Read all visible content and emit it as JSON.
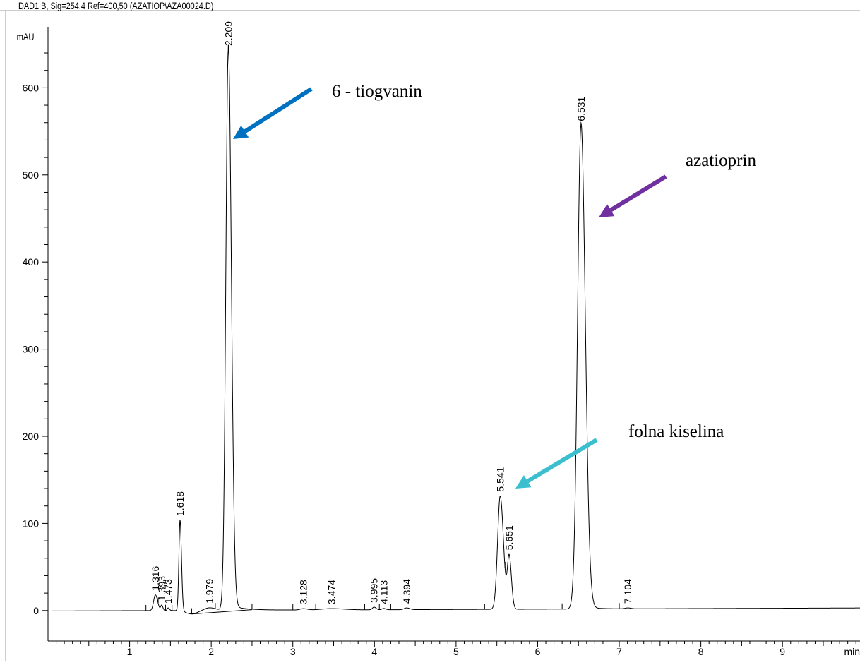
{
  "chart_data": {
    "type": "line",
    "title": "DAD1 B, Sig=254,4 Ref=400,50 (AZATIOP\\AZA00024.D)",
    "ylabel": "mAU",
    "xlabel": "min",
    "xlim": [
      0.0,
      9.95
    ],
    "ylim": [
      -35,
      670
    ],
    "x_ticks": [
      1,
      2,
      3,
      4,
      5,
      6,
      7,
      8,
      9
    ],
    "y_ticks": [
      0,
      100,
      200,
      300,
      400,
      500,
      600
    ],
    "peaks": [
      {
        "rt": 1.316,
        "height": 18,
        "width": 0.022,
        "label": "1.316"
      },
      {
        "rt": 1.393,
        "height": 6,
        "width": 0.012,
        "label": "1.393"
      },
      {
        "rt": 1.473,
        "height": 3,
        "width": 0.012,
        "label": "1.473"
      },
      {
        "rt": 1.618,
        "height": 104,
        "width": 0.014,
        "label": "1.618"
      },
      {
        "rt": 1.979,
        "height": 3,
        "width": 0.06,
        "label": "1.979"
      },
      {
        "rt": 2.209,
        "height": 643,
        "width": 0.03,
        "label": "2.209"
      },
      {
        "rt": 3.128,
        "height": 1.5,
        "width": 0.04,
        "label": "3.128"
      },
      {
        "rt": 3.474,
        "height": 1.5,
        "width": 0.12,
        "label": "3.474"
      },
      {
        "rt": 3.995,
        "height": 3,
        "width": 0.02,
        "label": "3.995"
      },
      {
        "rt": 4.113,
        "height": 1.5,
        "width": 0.02,
        "label": "4.113"
      },
      {
        "rt": 4.394,
        "height": 2,
        "width": 0.03,
        "label": "4.394"
      },
      {
        "rt": 5.541,
        "height": 130,
        "width": 0.032,
        "label": "5.541"
      },
      {
        "rt": 5.651,
        "height": 60,
        "width": 0.022,
        "label": "5.651"
      },
      {
        "rt": 6.531,
        "height": 555,
        "width": 0.042,
        "label": "6.531"
      },
      {
        "rt": 7.104,
        "height": 1,
        "width": 0.03,
        "label": "7.104"
      }
    ],
    "annotations": [
      {
        "text": "6 - tiogvanin",
        "color": "#0070c0"
      },
      {
        "text": "azatioprin",
        "color": "#7030a0"
      },
      {
        "text": "folna kiselina",
        "color": "#3bbfcf"
      }
    ],
    "grid": false,
    "legend": "none"
  }
}
